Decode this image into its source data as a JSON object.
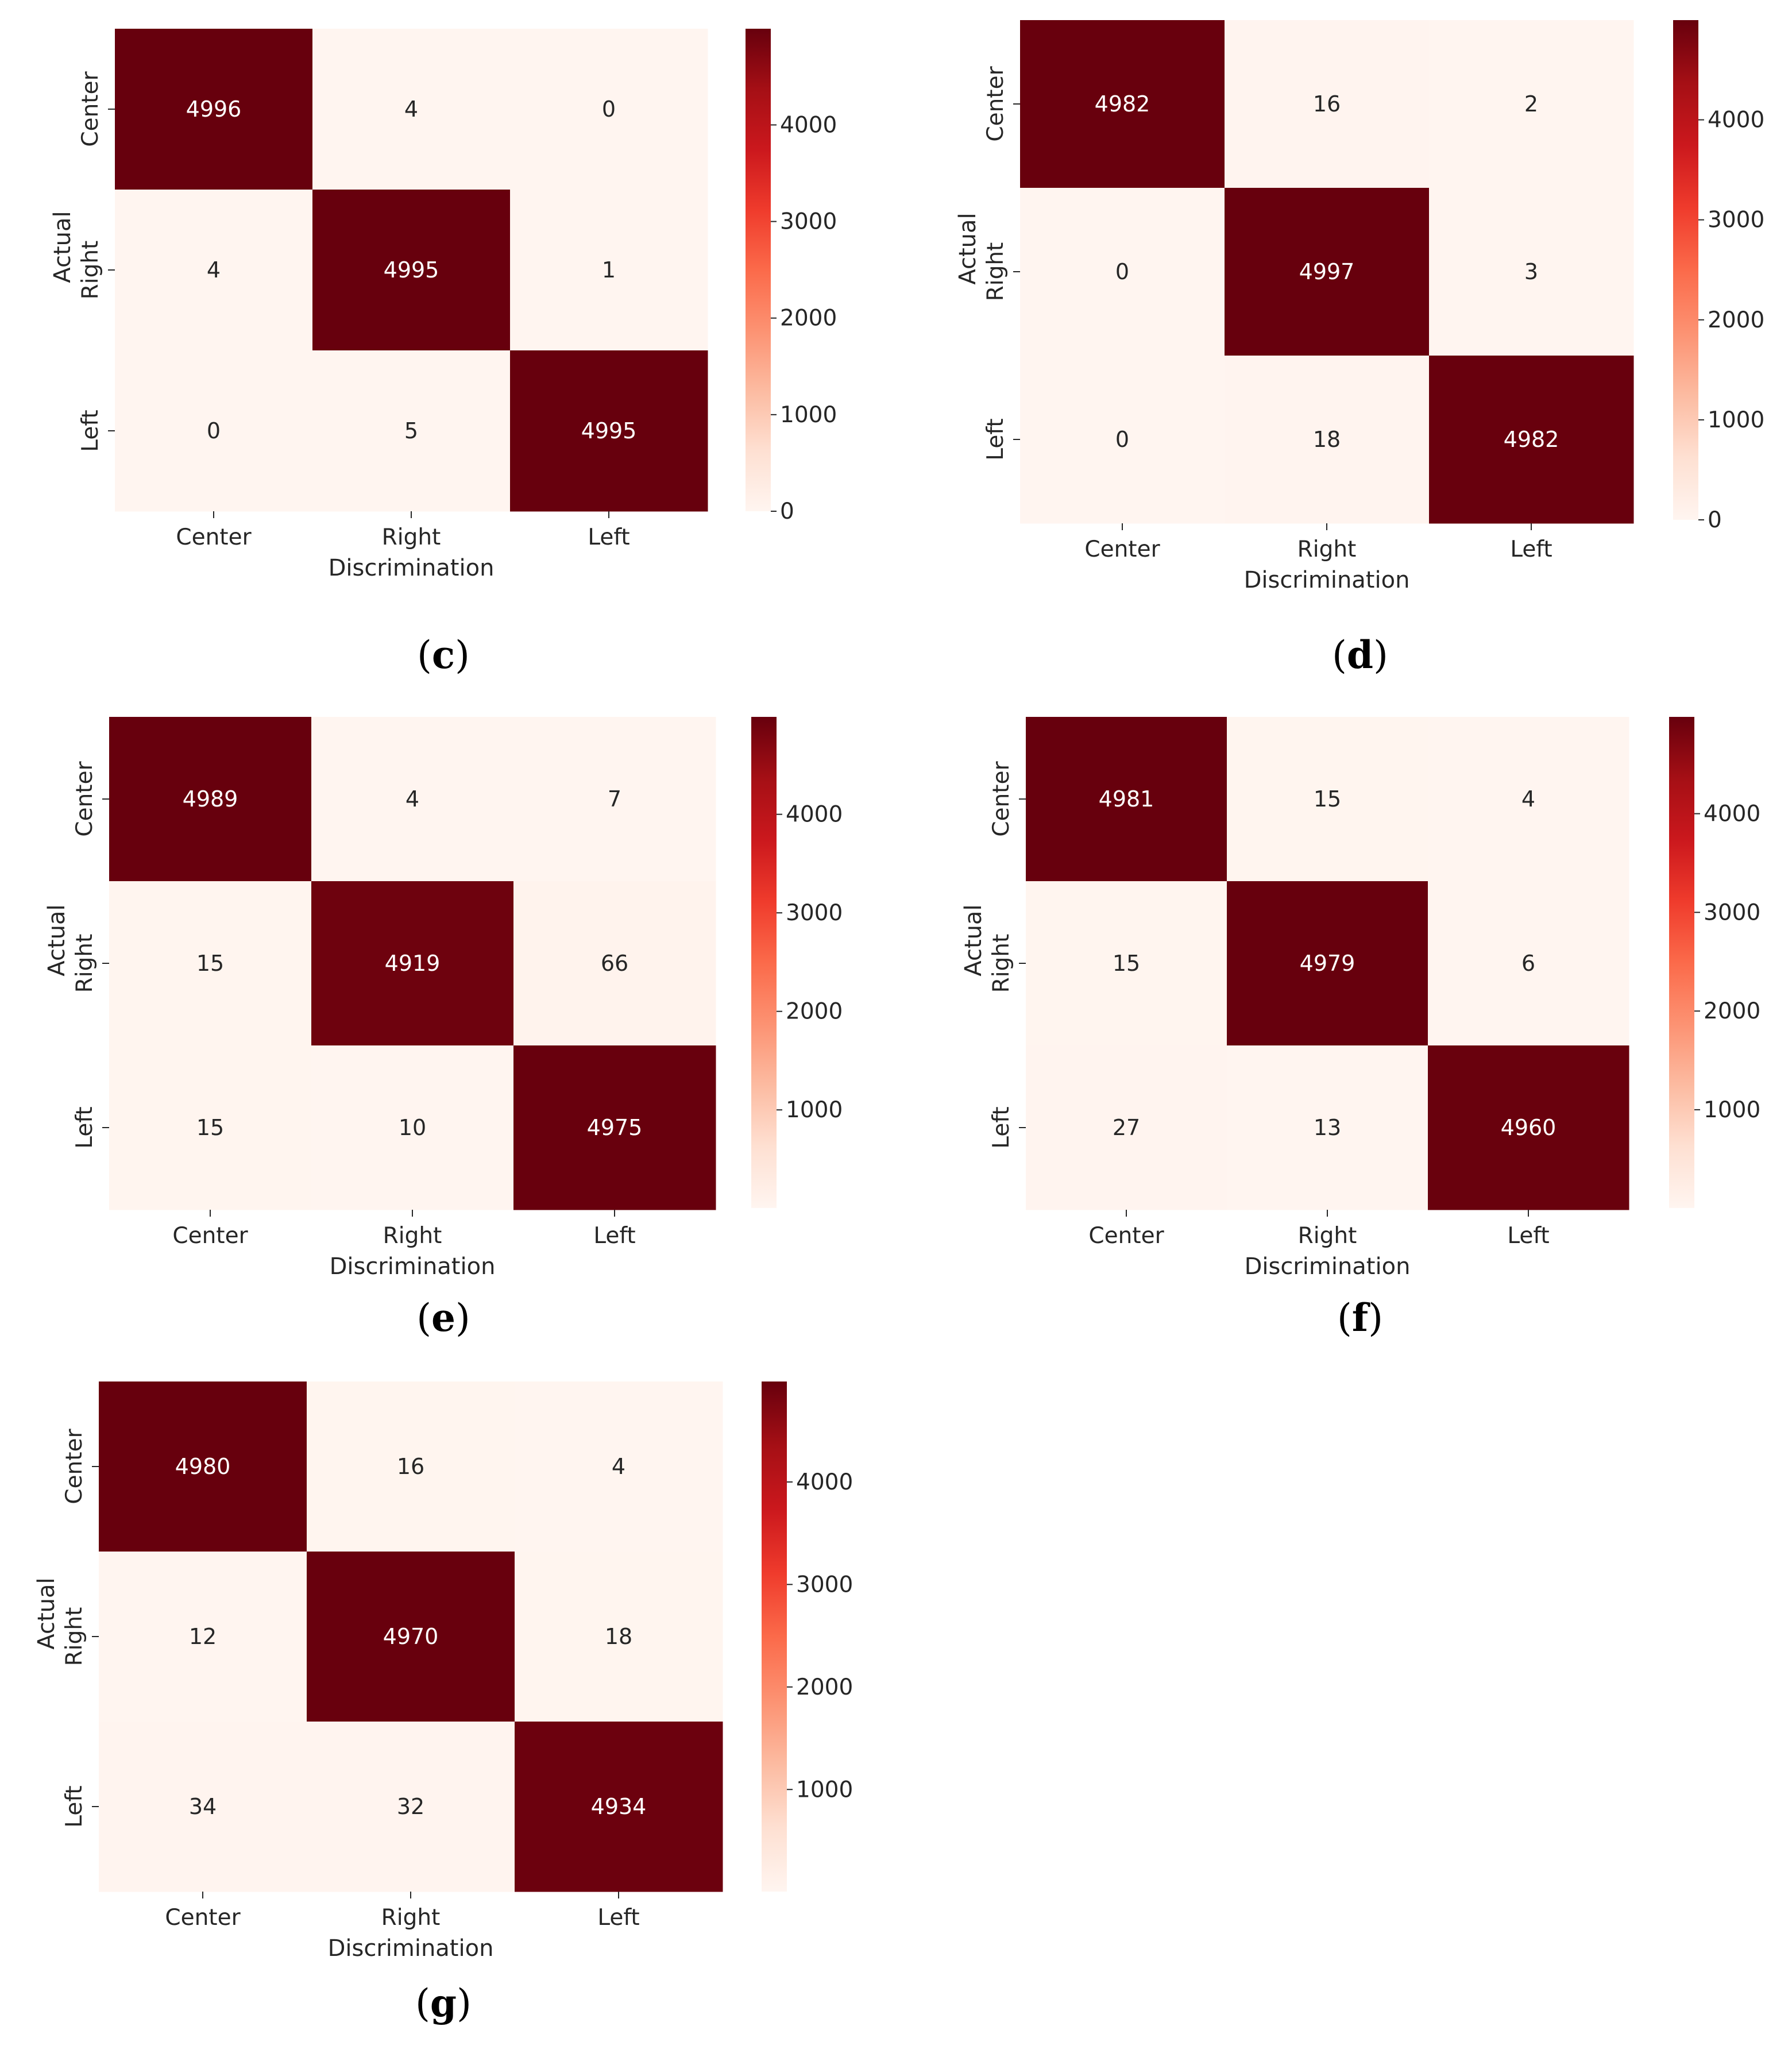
{
  "figure": {
    "colormap": [
      "#fff5f0",
      "#fee0d2",
      "#fcbba1",
      "#fc9272",
      "#fb6a4a",
      "#ef3b2c",
      "#cb181d",
      "#a50f15",
      "#67000d"
    ],
    "text_dark": "#262626",
    "text_light": "#ffffff"
  },
  "chart_data": [
    {
      "panel_label": "c",
      "type": "heatmap",
      "xlabel": "Discrimination",
      "ylabel": "Actual",
      "x_categories": [
        "Center",
        "Right",
        "Left"
      ],
      "y_categories": [
        "Center",
        "Right",
        "Left"
      ],
      "values": [
        [
          4996,
          4,
          0
        ],
        [
          4,
          4995,
          1
        ],
        [
          0,
          5,
          4995
        ]
      ],
      "colorbar": {
        "vmin": 0,
        "vmax": 4996,
        "ticks": [
          0,
          1000,
          2000,
          3000,
          4000
        ]
      }
    },
    {
      "panel_label": "d",
      "type": "heatmap",
      "xlabel": "Discrimination",
      "ylabel": "Actual",
      "x_categories": [
        "Center",
        "Right",
        "Left"
      ],
      "y_categories": [
        "Center",
        "Right",
        "Left"
      ],
      "values": [
        [
          4982,
          16,
          2
        ],
        [
          0,
          4997,
          3
        ],
        [
          0,
          18,
          4982
        ]
      ],
      "colorbar": {
        "vmin": 0,
        "vmax": 4997,
        "ticks": [
          0,
          1000,
          2000,
          3000,
          4000
        ]
      }
    },
    {
      "panel_label": "e",
      "type": "heatmap",
      "xlabel": "Discrimination",
      "ylabel": "Actual",
      "x_categories": [
        "Center",
        "Right",
        "Left"
      ],
      "y_categories": [
        "Center",
        "Right",
        "Left"
      ],
      "values": [
        [
          4989,
          4,
          7
        ],
        [
          15,
          4919,
          66
        ],
        [
          15,
          10,
          4975
        ]
      ],
      "colorbar": {
        "vmin": 4,
        "vmax": 4989,
        "ticks": [
          1000,
          2000,
          3000,
          4000
        ]
      }
    },
    {
      "panel_label": "f",
      "type": "heatmap",
      "xlabel": "Discrimination",
      "ylabel": "Actual",
      "x_categories": [
        "Center",
        "Right",
        "Left"
      ],
      "y_categories": [
        "Center",
        "Right",
        "Left"
      ],
      "values": [
        [
          4981,
          15,
          4
        ],
        [
          15,
          4979,
          6
        ],
        [
          27,
          13,
          4960
        ]
      ],
      "colorbar": {
        "vmin": 4,
        "vmax": 4981,
        "ticks": [
          1000,
          2000,
          3000,
          4000
        ]
      }
    },
    {
      "panel_label": "g",
      "type": "heatmap",
      "xlabel": "Discrimination",
      "ylabel": "Actual",
      "x_categories": [
        "Center",
        "Right",
        "Left"
      ],
      "y_categories": [
        "Center",
        "Right",
        "Left"
      ],
      "values": [
        [
          4980,
          16,
          4
        ],
        [
          12,
          4970,
          18
        ],
        [
          34,
          32,
          4934
        ]
      ],
      "colorbar": {
        "vmin": 4,
        "vmax": 4980,
        "ticks": [
          1000,
          2000,
          3000,
          4000
        ]
      }
    }
  ]
}
